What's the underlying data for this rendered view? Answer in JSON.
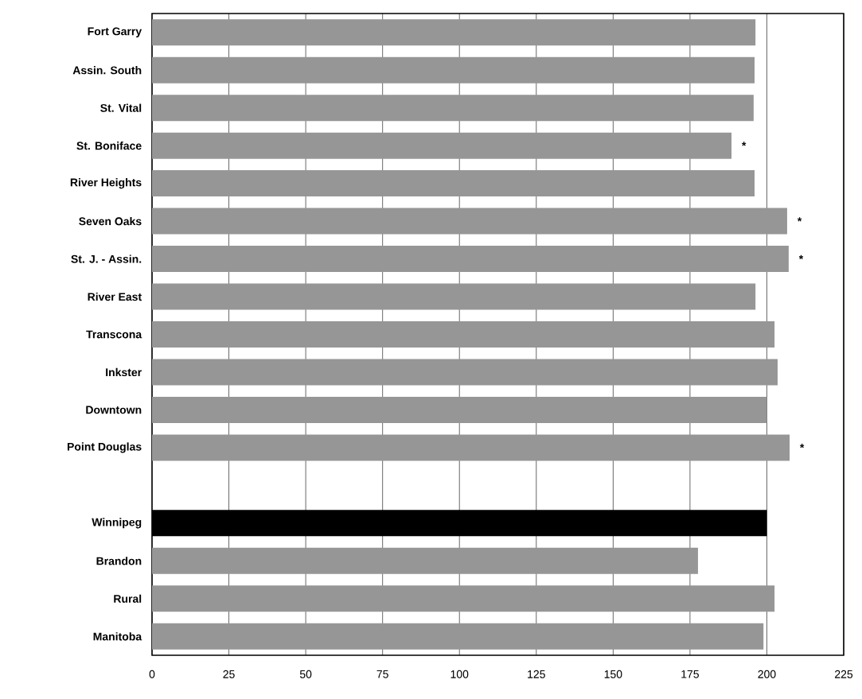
{
  "chart_data": {
    "type": "bar",
    "orientation": "horizontal",
    "categories": [
      "Fort Garry",
      "Assin. South",
      "St. Vital",
      "St. Boniface",
      "River Heights",
      "Seven Oaks",
      "St. J. - Assin.",
      "River East",
      "Transcona",
      "Inkster",
      "Downtown",
      "Point Douglas",
      null,
      "Winnipeg",
      "Brandon",
      "Rural",
      "Manitoba"
    ],
    "values": [
      196.3,
      196.0,
      195.7,
      188.5,
      196.0,
      206.6,
      207.1,
      196.3,
      202.5,
      203.5,
      200.0,
      207.4,
      null,
      200.0,
      177.6,
      202.5,
      198.9
    ],
    "colors": [
      "#969696",
      "#969696",
      "#969696",
      "#969696",
      "#969696",
      "#969696",
      "#969696",
      "#969696",
      "#969696",
      "#969696",
      "#969696",
      "#969696",
      "#969696",
      "#000000",
      "#969696",
      "#969696",
      "#969696"
    ],
    "value_labels": [
      null,
      null,
      null,
      "*",
      null,
      "*",
      "*",
      null,
      null,
      null,
      null,
      "*",
      null,
      null,
      null,
      null,
      null
    ],
    "xlim": [
      0,
      225
    ],
    "xticks": [
      0,
      25,
      50,
      75,
      100,
      125,
      150,
      175,
      200,
      225
    ],
    "grid": "x"
  }
}
